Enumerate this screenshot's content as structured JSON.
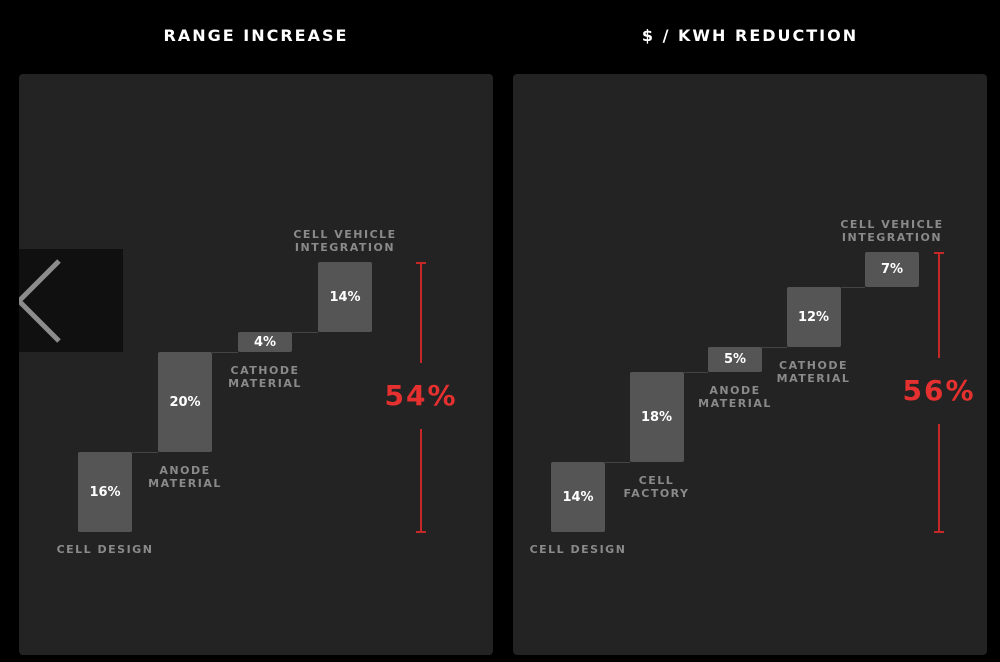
{
  "chart_data": [
    {
      "type": "bar",
      "subtype": "waterfall",
      "title": "RANGE INCREASE",
      "categories": [
        [
          "CELL DESIGN"
        ],
        [
          "ANODE",
          "MATERIAL"
        ],
        [
          "CATHODE",
          "MATERIAL"
        ],
        [
          "CELL VEHICLE",
          "INTEGRATION"
        ]
      ],
      "values": [
        16,
        20,
        4,
        14
      ],
      "value_labels": [
        "16%",
        "20%",
        "4%",
        "14%"
      ],
      "total": 54,
      "total_label": "54%"
    },
    {
      "type": "bar",
      "subtype": "waterfall",
      "title": "$ / KWH REDUCTION",
      "categories": [
        [
          "CELL DESIGN"
        ],
        [
          "CELL",
          "FACTORY"
        ],
        [
          "ANODE",
          "MATERIAL"
        ],
        [
          "CATHODE",
          "MATERIAL"
        ],
        [
          "CELL VEHICLE",
          "INTEGRATION"
        ]
      ],
      "values": [
        14,
        18,
        5,
        12,
        7
      ],
      "value_labels": [
        "14%",
        "18%",
        "5%",
        "12%",
        "7%"
      ],
      "total": 56,
      "total_label": "56%"
    }
  ],
  "colors": {
    "background": "#000000",
    "panel": "#232323",
    "bar": "#555555",
    "accent": "#e53030",
    "label": "#8a8a8a"
  },
  "nav": {
    "back_icon": "chevron-left-icon"
  }
}
